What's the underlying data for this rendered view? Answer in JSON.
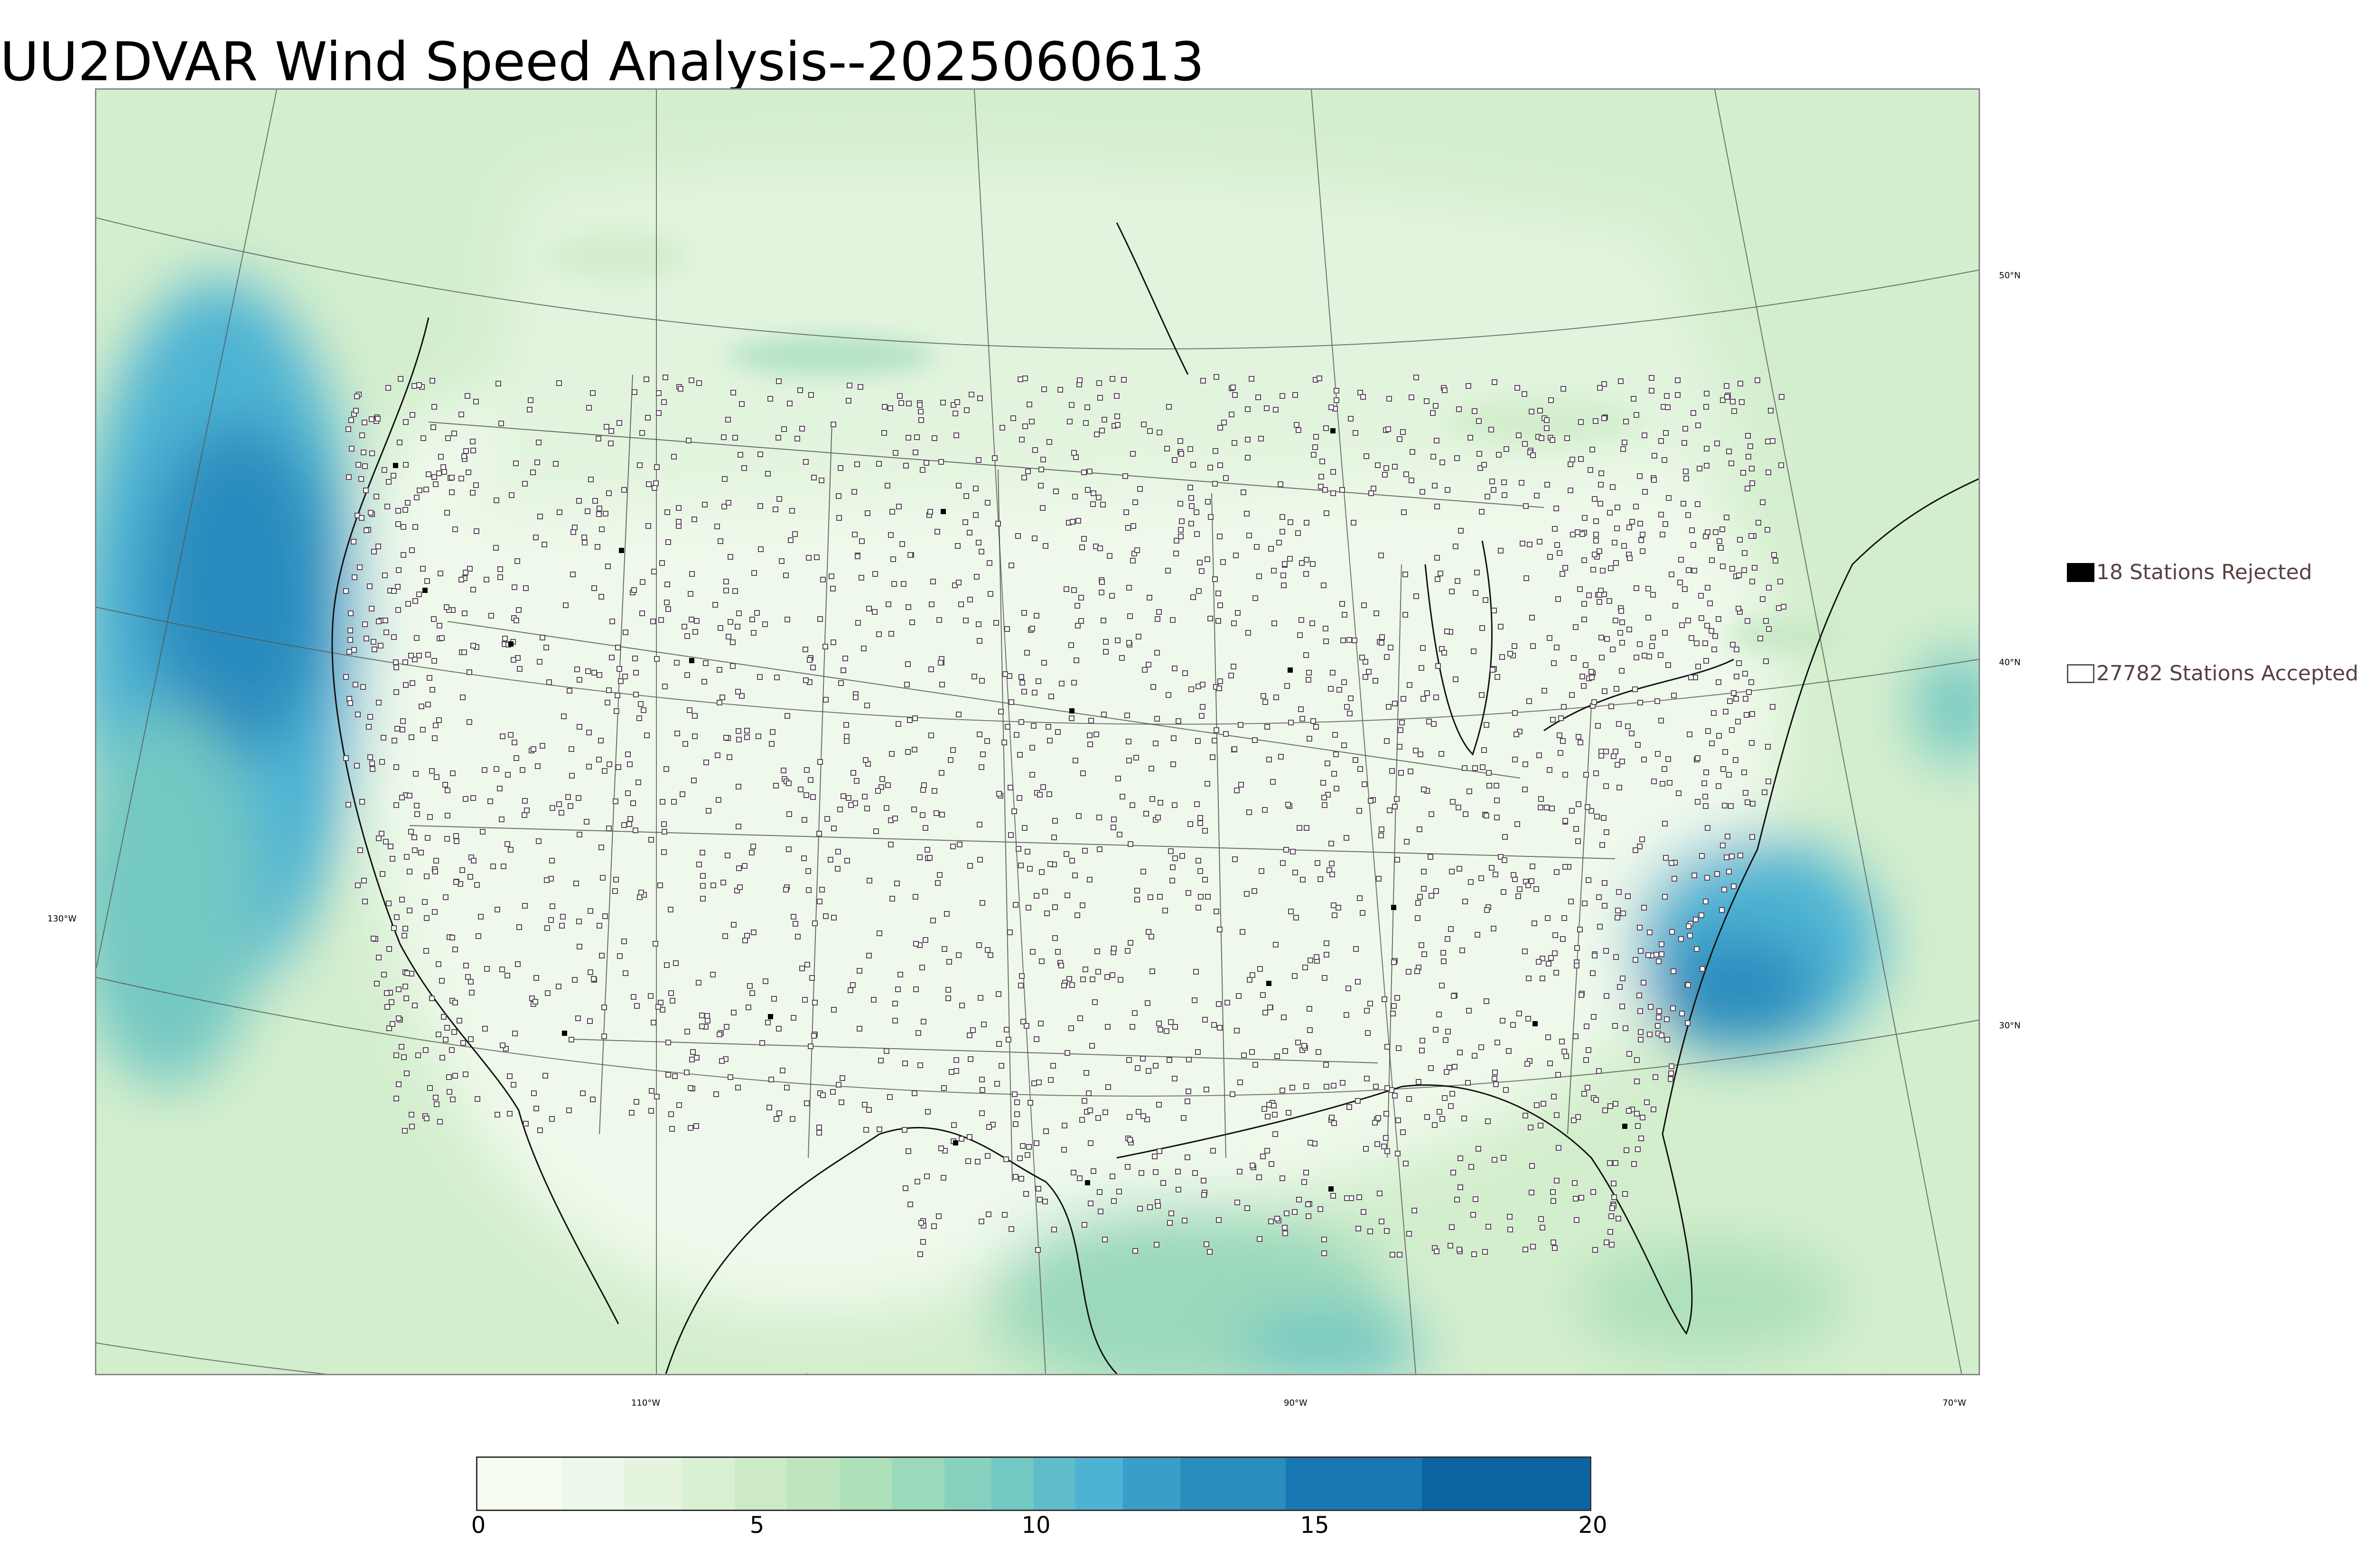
{
  "title": "UU2DVAR Wind Speed Analysis--2025060613",
  "legend": {
    "rejected_label": "18 Stations Rejected",
    "accepted_label": "27782 Stations Accepted"
  },
  "lat_labels": [
    "50°N",
    "40°N",
    "30°N"
  ],
  "lon_labels": [
    "130°W",
    "110°W",
    "90°W",
    "70°W"
  ],
  "colorbar": {
    "ticks": [
      "0",
      "5",
      "10",
      "15",
      "20"
    ],
    "colors": [
      "#f7fcf0",
      "#eef8ea",
      "#e4f4df",
      "#d9f0d3",
      "#ccebc5",
      "#bfe5bf",
      "#ade0b9",
      "#9bd9bb",
      "#88d1be",
      "#73c8c3",
      "#5fbcc9",
      "#4eb3d3",
      "#3a9ec8",
      "#2b8cbe",
      "#1978b3",
      "#0d64a3"
    ]
  },
  "chart_data": {
    "type": "heatmap",
    "title": "UU2DVAR Wind Speed Analysis--2025060613",
    "colorbar_range": [
      0,
      20
    ],
    "colorbar_ticks": [
      0,
      5,
      10,
      15,
      20
    ],
    "stations": {
      "rejected": 18,
      "accepted": 27782
    }
  }
}
